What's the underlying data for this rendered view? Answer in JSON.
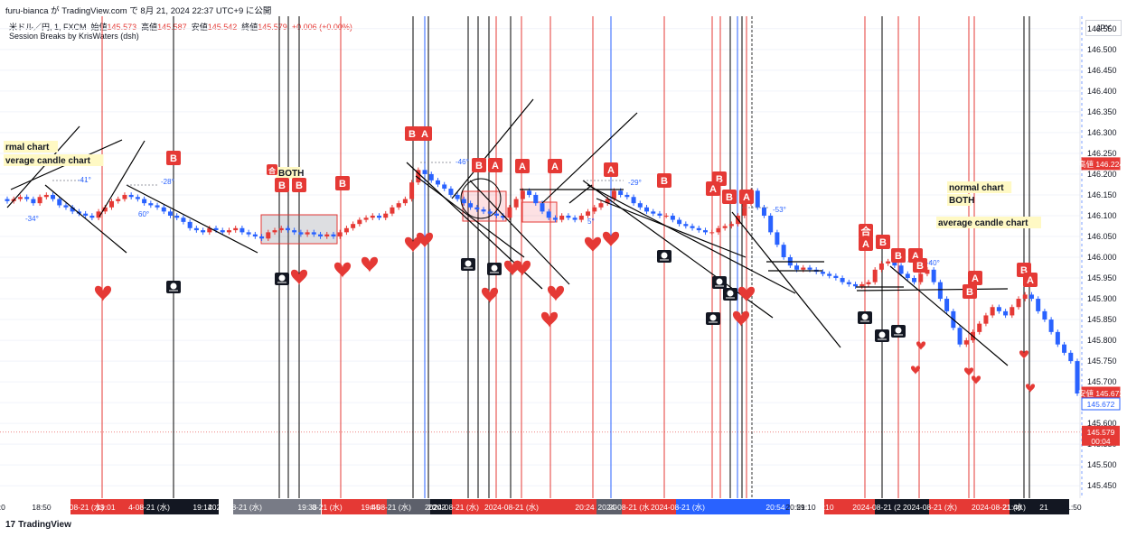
{
  "header": {
    "text": "furu-bianca が TradingView.com で 8月 21, 2024 22:37 UTC+9 に公開"
  },
  "legend": {
    "symbol": "米ドル／円, 1, FXCM",
    "open_label": "始値",
    "open": "145.573",
    "high_label": "高値",
    "high": "145.587",
    "low_label": "安値",
    "low": "145.542",
    "close_label": "終値",
    "close": "145.579",
    "change": "+0.006 (+0.00%)",
    "indicator": "Session Breaks by KrisWaters (dsh)"
  },
  "currency_button": "JPY",
  "footer": {
    "logo_text": "TradingView",
    "logo_symbol": "17"
  },
  "chart_data": {
    "type": "candlestick",
    "y_axis": {
      "ticks": [
        "146.550",
        "146.500",
        "146.450",
        "146.400",
        "146.350",
        "146.300",
        "146.250",
        "146.200",
        "146.150",
        "146.100",
        "146.050",
        "146.000",
        "145.950",
        "145.900",
        "145.850",
        "145.800",
        "145.750",
        "145.700",
        "145.650",
        "145.600",
        "145.550",
        "145.500",
        "145.450"
      ],
      "range": [
        145.42,
        146.58
      ]
    },
    "price_labels": [
      {
        "label": "高値",
        "value": "146.224",
        "kind": "high"
      },
      {
        "label": "安値",
        "value": "145.672",
        "kind": "low"
      },
      {
        "label": "",
        "value": "145.672",
        "kind": "current-outline"
      },
      {
        "label": "",
        "value": "145.579",
        "kind": "close",
        "sub": "00:04"
      }
    ],
    "x_axis_labels": [
      "18:50",
      "2024-08-21 (水)",
      "19:01",
      "4-08-21 (水)",
      "19:14",
      "2024-08-21 (水)",
      "19:33",
      "8-21 (水)",
      "19:45",
      "4-08-21 (水)",
      "20",
      "202",
      "2024-08-21 (水)",
      "2024-08-21 (水)",
      "20:24",
      "20",
      "2024-08-21 (水",
      "2024-08-21 (水)",
      "20:54",
      "20:59",
      "21:10",
      "2024-08-21 (2",
      "2024-08-21 (水)",
      "2024-08-21 (水)",
      "21:40",
      "21",
      "21:50",
      "2:0"
    ],
    "annotations": [
      "rmal chart",
      "verage candle chart",
      "BOTH",
      "normal chart",
      "BOTH",
      "average candle chart"
    ],
    "angle_labels": [
      "-41°",
      "-28°",
      "60°",
      "-34°",
      "-46°",
      "-29°",
      "-53°",
      "-40°",
      "5°"
    ],
    "marker_letters": [
      "A",
      "B",
      "合"
    ],
    "close_series": [
      146.135,
      146.14,
      146.145,
      146.14,
      146.13,
      146.145,
      146.15,
      146.14,
      146.125,
      146.12,
      146.11,
      146.105,
      146.1,
      146.095,
      146.11,
      146.12,
      146.135,
      146.14,
      146.15,
      146.145,
      146.14,
      146.13,
      146.125,
      146.12,
      146.11,
      146.1,
      146.095,
      146.085,
      146.07,
      146.065,
      146.06,
      146.07,
      146.065,
      146.06,
      146.065,
      146.07,
      146.06,
      146.055,
      146.05,
      146.045,
      146.06,
      146.065,
      146.07,
      146.065,
      146.06,
      146.055,
      146.06,
      146.055,
      146.05,
      146.055,
      146.05,
      146.06,
      146.07,
      146.08,
      146.09,
      146.095,
      146.1,
      146.095,
      146.105,
      146.12,
      146.13,
      146.14,
      146.18,
      146.21,
      146.2,
      146.185,
      146.175,
      146.165,
      146.15,
      146.14,
      146.13,
      146.12,
      146.115,
      146.11,
      146.105,
      146.1,
      146.095,
      146.12,
      146.14,
      146.16,
      146.15,
      146.13,
      146.11,
      146.095,
      146.09,
      146.1,
      146.095,
      146.09,
      146.1,
      146.11,
      146.12,
      146.13,
      146.14,
      146.16,
      146.15,
      146.145,
      146.13,
      146.12,
      146.11,
      146.105,
      146.1,
      146.1,
      146.09,
      146.08,
      146.075,
      146.07,
      146.065,
      146.06,
      146.06,
      146.07,
      146.075,
      146.08,
      146.1,
      146.13,
      146.16,
      146.12,
      146.1,
      146.06,
      146.03,
      146.0,
      145.98,
      145.97,
      145.975,
      145.97,
      145.965,
      145.96,
      145.955,
      145.95,
      145.94,
      145.935,
      145.93,
      145.935,
      145.94,
      145.97,
      145.985,
      145.99,
      145.98,
      145.96,
      145.95,
      145.94,
      145.96,
      145.97,
      145.94,
      145.9,
      145.87,
      145.83,
      145.79,
      145.8,
      145.82,
      145.84,
      145.86,
      145.88,
      145.87,
      145.86,
      145.88,
      145.9,
      145.91,
      145.9,
      145.87,
      145.85,
      145.82,
      145.79,
      145.77,
      145.75,
      145.672
    ]
  }
}
